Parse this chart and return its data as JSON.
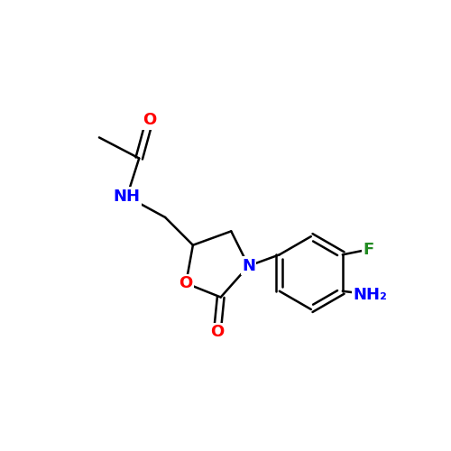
{
  "background_color": "#ffffff",
  "bond_color": "#000000",
  "atom_colors": {
    "O": "#ff0000",
    "N": "#0000ff",
    "F": "#228B22",
    "NH": "#0000ff",
    "NH2": "#0000ff",
    "C": "#000000"
  },
  "figsize": [
    5.0,
    5.0
  ],
  "dpi": 100
}
